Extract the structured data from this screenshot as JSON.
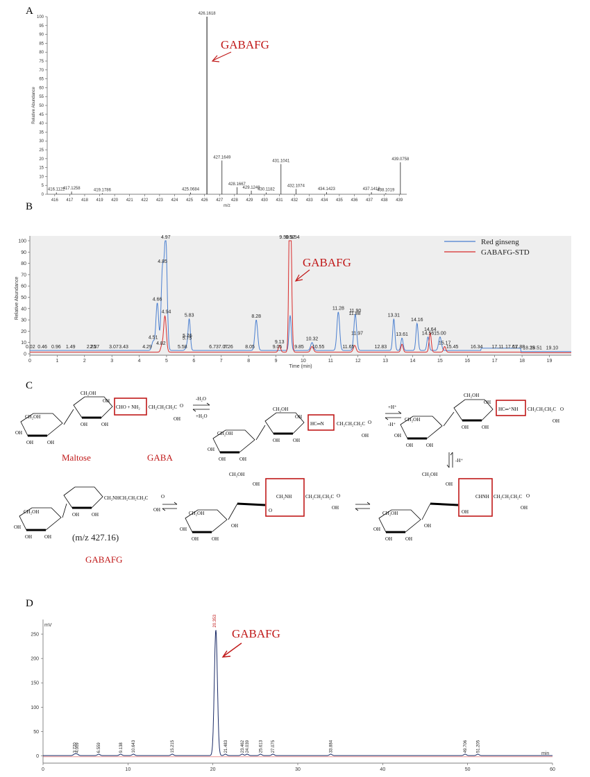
{
  "figure": {
    "panel_labels": [
      "A",
      "B",
      "C",
      "D"
    ]
  },
  "chart_data": [
    {
      "id": "A",
      "type": "bar",
      "title": "",
      "xlabel": "m/z",
      "ylabel": "Relative Abundance",
      "xlim": [
        415.5,
        439.5
      ],
      "ylim": [
        0,
        100
      ],
      "xticks": [
        416,
        417,
        418,
        419,
        420,
        421,
        422,
        423,
        424,
        425,
        426,
        427,
        428,
        429,
        430,
        431,
        432,
        433,
        434,
        435,
        436,
        437,
        438,
        439
      ],
      "yticks": [
        0,
        5,
        10,
        15,
        20,
        25,
        30,
        35,
        40,
        45,
        50,
        55,
        60,
        65,
        70,
        75,
        80,
        85,
        90,
        95,
        100
      ],
      "peaks": [
        {
          "mz": 416.1122,
          "label": "416.1122",
          "value": 1
        },
        {
          "mz": 417.1258,
          "label": "417.1258",
          "value": 1.5
        },
        {
          "mz": 419.1786,
          "label": "419.1786",
          "value": 0.6
        },
        {
          "mz": 425.0684,
          "label": "425.0684",
          "value": 1
        },
        {
          "mz": 426.1618,
          "label": "426.1618",
          "value": 100
        },
        {
          "mz": 427.1649,
          "label": "427.1649",
          "value": 19
        },
        {
          "mz": 428.1667,
          "label": "428.1667",
          "value": 4
        },
        {
          "mz": 429.1248,
          "label": "429.1248",
          "value": 2
        },
        {
          "mz": 430.1182,
          "label": "430.1182",
          "value": 1
        },
        {
          "mz": 431.1041,
          "label": "431.1041",
          "value": 17
        },
        {
          "mz": 432.1074,
          "label": "432.1074",
          "value": 3
        },
        {
          "mz": 434.1423,
          "label": "434.1423",
          "value": 1.2
        },
        {
          "mz": 437.1418,
          "label": "437.1418",
          "value": 1.2
        },
        {
          "mz": 438.1019,
          "label": "438.1019",
          "value": 0.6
        },
        {
          "mz": 439.0758,
          "label": "439.0758",
          "value": 18
        }
      ],
      "annotation": "GABAFG"
    },
    {
      "id": "B",
      "type": "line",
      "title": "",
      "xlabel": "Time (min)",
      "ylabel": "Relative Abundance",
      "xlim": [
        0,
        19.8
      ],
      "ylim": [
        0,
        100
      ],
      "xticks": [
        0,
        1,
        2,
        3,
        4,
        5,
        6,
        7,
        8,
        9,
        10,
        11,
        12,
        13,
        14,
        15,
        16,
        17,
        18,
        19
      ],
      "yticks": [
        0,
        10,
        20,
        30,
        40,
        50,
        60,
        70,
        80,
        90,
        100
      ],
      "legend": [
        "Red ginseng",
        "GABAFG-STD"
      ],
      "legend_position": "top-right",
      "series": [
        {
          "name": "Red ginseng",
          "color": "#4a7fd0",
          "baseline": 3,
          "end_baseline": 2,
          "plateau": [
            16.5,
            17.95
          ],
          "peaks": [
            [
              4.51,
              8,
              0.05
            ],
            [
              4.66,
              42,
              0.05
            ],
            [
              4.85,
              70,
              0.05
            ],
            [
              4.97,
              100,
              0.05
            ],
            [
              5.75,
              4,
              0.05
            ],
            [
              5.83,
              27,
              0.04
            ],
            [
              8.28,
              27,
              0.05
            ],
            [
              9.52,
              31,
              0.04
            ],
            [
              10.32,
              7,
              0.05
            ],
            [
              11.28,
              34,
              0.05
            ],
            [
              11.9,
              32,
              0.05
            ],
            [
              13.31,
              28,
              0.04
            ],
            [
              13.61,
              11,
              0.04
            ],
            [
              14.16,
              24,
              0.04
            ],
            [
              14.56,
              12,
              0.04
            ],
            [
              15.0,
              12,
              0.05
            ]
          ],
          "labels": [
            [
              0.02,
              "0.02"
            ],
            [
              0.46,
              "0.46"
            ],
            [
              0.96,
              "0.96"
            ],
            [
              1.49,
              "1.49"
            ],
            [
              2.25,
              "2.25"
            ],
            [
              2.37,
              "2.37"
            ],
            [
              3.07,
              "3.07"
            ],
            [
              3.43,
              "3.43"
            ],
            [
              4.29,
              "4.29"
            ],
            [
              4.51,
              "4.51"
            ],
            [
              4.66,
              "4.66"
            ],
            [
              4.85,
              "4.85"
            ],
            [
              4.97,
              "4.97"
            ],
            [
              5.58,
              "5.58"
            ],
            [
              5.75,
              "5.75"
            ],
            [
              5.76,
              "5.76"
            ],
            [
              5.83,
              "5.83"
            ],
            [
              6.73,
              "6.73"
            ],
            [
              7.07,
              "7.07"
            ],
            [
              7.26,
              "7.26"
            ],
            [
              8.05,
              "8.05"
            ],
            [
              8.28,
              "8.28"
            ],
            [
              9.05,
              "9.05"
            ],
            [
              9.13,
              "9.13"
            ],
            [
              9.52,
              "9.52"
            ],
            [
              9.85,
              "9.85"
            ],
            [
              10.32,
              "10.32"
            ],
            [
              10.55,
              "10.55"
            ],
            [
              11.28,
              "11.28"
            ],
            [
              11.65,
              "11.65"
            ],
            [
              11.88,
              "11.88"
            ],
            [
              11.9,
              "11.90"
            ],
            [
              11.97,
              "11.97"
            ],
            [
              12.83,
              "12.83"
            ],
            [
              13.31,
              "13.31"
            ],
            [
              13.61,
              "13.61"
            ],
            [
              14.16,
              "14.16"
            ],
            [
              14.56,
              "14.56"
            ],
            [
              14.64,
              "14.64"
            ],
            [
              15.0,
              "15.00"
            ],
            [
              15.17,
              "15.17"
            ],
            [
              15.45,
              "15.45"
            ],
            [
              16.34,
              "16.34"
            ],
            [
              17.11,
              "17.11"
            ],
            [
              17.61,
              "17.61"
            ],
            [
              17.88,
              "17.88"
            ],
            [
              18.25,
              "18.25"
            ],
            [
              18.51,
              "18.51"
            ],
            [
              19.1,
              "19.10"
            ]
          ]
        },
        {
          "name": "GABAFG-STD",
          "color": "#d82a2a",
          "baseline": 1.5,
          "end_baseline": 1,
          "plateau": [],
          "peaks": [
            [
              4.82,
              5,
              0.04
            ],
            [
              4.94,
              32,
              0.05
            ],
            [
              9.13,
              6,
              0.04
            ],
            [
              9.5,
              100,
              0.035
            ],
            [
              9.54,
              98,
              0.04
            ],
            [
              10.32,
              5,
              0.05
            ],
            [
              11.88,
              6,
              0.05
            ],
            [
              13.61,
              7,
              0.04
            ],
            [
              14.64,
              17,
              0.04
            ],
            [
              15.17,
              5,
              0.04
            ]
          ],
          "labels": [
            [
              9.5,
              "9.50"
            ],
            [
              9.54,
              "9.54"
            ],
            [
              4.94,
              "4.94"
            ],
            [
              4.82,
              "4.82"
            ]
          ]
        }
      ],
      "annotation": "GABAFG"
    },
    {
      "id": "D",
      "type": "line",
      "title": "",
      "xlabel": "min",
      "ylabel": "mV",
      "xlim": [
        0,
        60
      ],
      "ylim": [
        -15,
        280
      ],
      "xticks": [
        0,
        10,
        20,
        30,
        40,
        50,
        60
      ],
      "yticks": [
        0,
        50,
        100,
        150,
        200,
        250
      ],
      "main_peak": {
        "time": 20.353,
        "height": 258,
        "label": "20.353"
      },
      "minor_peaks": [
        {
          "time": 3.72,
          "label": "3.720"
        },
        {
          "time": 4.009,
          "label": "4.009"
        },
        {
          "time": 6.559,
          "label": "6.559"
        },
        {
          "time": 9.138,
          "label": "9.138"
        },
        {
          "time": 10.643,
          "label": "10.643"
        },
        {
          "time": 15.215,
          "label": "15.215"
        },
        {
          "time": 21.483,
          "label": "21.483"
        },
        {
          "time": 23.462,
          "label": "23.462"
        },
        {
          "time": 24.039,
          "label": "24.039"
        },
        {
          "time": 25.613,
          "label": "25.613"
        },
        {
          "time": 27.075,
          "label": "27.075"
        },
        {
          "time": 33.884,
          "label": "33.884"
        },
        {
          "time": 49.706,
          "label": "49.706"
        },
        {
          "time": 51.205,
          "label": "51.205"
        }
      ],
      "annotation": "GABAFG"
    }
  ],
  "scheme": {
    "labels": {
      "maltose": "Maltose",
      "gaba": "GABA",
      "gabafg": "GABAFG",
      "mz": "(m/z 427.16)"
    },
    "conditions": {
      "step1_top": "-H₂O",
      "step1_bottom": "+H₂O",
      "step2_top": "+H⁺",
      "step2_bottom": "-H⁺",
      "step3": "-H⁺"
    },
    "chain_acid": "CH₂CH₂CH₂C",
    "chain_amadori": "CH₂NHCH₂CH₂CH₂C",
    "aldehyde": "CHO + NH₂",
    "imine": "HC═N",
    "iminium": "HC═⁺NH",
    "enol_amine": "CHNH",
    "ketoamine": "CH₂NH",
    "ch2oh": "CH₂OH",
    "oh": "OH",
    "h": "H",
    "o": "O"
  }
}
